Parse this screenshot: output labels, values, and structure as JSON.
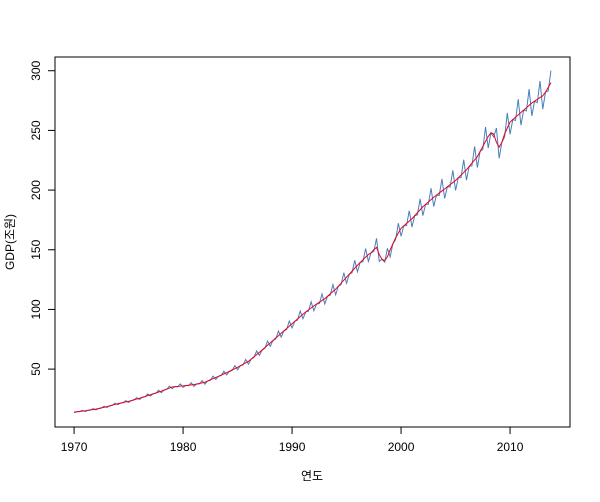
{
  "chart_data": {
    "type": "line",
    "xlabel": "연도",
    "ylabel": "GDP(조원)",
    "x": [
      1970,
      1970.25,
      1970.5,
      1970.75,
      1971,
      1971.25,
      1971.5,
      1971.75,
      1972,
      1972.25,
      1972.5,
      1972.75,
      1973,
      1973.25,
      1973.5,
      1973.75,
      1974,
      1974.25,
      1974.5,
      1974.75,
      1975,
      1975.25,
      1975.5,
      1975.75,
      1976,
      1976.25,
      1976.5,
      1976.75,
      1977,
      1977.25,
      1977.5,
      1977.75,
      1978,
      1978.25,
      1978.5,
      1978.75,
      1979,
      1979.25,
      1979.5,
      1979.75,
      1980,
      1980.25,
      1980.5,
      1980.75,
      1981,
      1981.25,
      1981.5,
      1981.75,
      1982,
      1982.25,
      1982.5,
      1982.75,
      1983,
      1983.25,
      1983.5,
      1983.75,
      1984,
      1984.25,
      1984.5,
      1984.75,
      1985,
      1985.25,
      1985.5,
      1985.75,
      1986,
      1986.25,
      1986.5,
      1986.75,
      1987,
      1987.25,
      1987.5,
      1987.75,
      1988,
      1988.25,
      1988.5,
      1988.75,
      1989,
      1989.25,
      1989.5,
      1989.75,
      1990,
      1990.25,
      1990.5,
      1990.75,
      1991,
      1991.25,
      1991.5,
      1991.75,
      1992,
      1992.25,
      1992.5,
      1992.75,
      1993,
      1993.25,
      1993.5,
      1993.75,
      1994,
      1994.25,
      1994.5,
      1994.75,
      1995,
      1995.25,
      1995.5,
      1995.75,
      1996,
      1996.25,
      1996.5,
      1996.75,
      1997,
      1997.25,
      1997.5,
      1997.75,
      1998,
      1998.25,
      1998.5,
      1998.75,
      1999,
      1999.25,
      1999.5,
      1999.75,
      2000,
      2000.25,
      2000.5,
      2000.75,
      2001,
      2001.25,
      2001.5,
      2001.75,
      2002,
      2002.25,
      2002.5,
      2002.75,
      2003,
      2003.25,
      2003.5,
      2003.75,
      2004,
      2004.25,
      2004.5,
      2004.75,
      2005,
      2005.25,
      2005.5,
      2005.75,
      2006,
      2006.25,
      2006.5,
      2006.75,
      2007,
      2007.25,
      2007.5,
      2007.75,
      2008,
      2008.25,
      2008.5,
      2008.75,
      2009,
      2009.25,
      2009.5,
      2009.75,
      2010,
      2010.25,
      2010.5,
      2010.75,
      2011,
      2011.25,
      2011.5,
      2011.75,
      2012,
      2012.25,
      2012.5,
      2012.75,
      2013,
      2013.25,
      2013.5,
      2013.75
    ],
    "series": [
      {
        "color": "#4a7ebb",
        "values": [
          13.4,
          14.3,
          14.4,
          15.5,
          14.4,
          15.4,
          15.6,
          16.9,
          15.8,
          17,
          17.3,
          18.9,
          17.8,
          19.1,
          19.6,
          21.4,
          20.2,
          21.5,
          21.8,
          23.6,
          22.1,
          23.6,
          24.1,
          26.1,
          24.5,
          26.3,
          26.7,
          29.2,
          27.4,
          29.3,
          29.7,
          32.3,
          30.2,
          32.4,
          33,
          35.8,
          33.6,
          35.3,
          35.1,
          37.6,
          34.6,
          36.3,
          36.1,
          38.6,
          35.5,
          37.5,
          37.6,
          40.4,
          37.4,
          40,
          40.6,
          44.1,
          41.3,
          44,
          44.6,
          48.3,
          45.1,
          48.1,
          48.8,
          52.9,
          49.4,
          52.8,
          53.5,
          58.1,
          54.2,
          58.4,
          59.7,
          65.2,
          61.4,
          66,
          67.3,
          73.5,
          69.1,
          74,
          75.2,
          81.9,
          76.8,
          82,
          83.2,
          90.3,
          84.5,
          90,
          91.1,
          98.7,
          92.2,
          97.8,
          98.5,
          106.4,
          98.9,
          104.5,
          104.9,
          112.9,
          104.6,
          111,
          111.9,
          120.8,
          112.3,
          119.5,
          120.8,
          130.7,
          121.9,
          129.5,
          130.7,
          141.2,
          131.5,
          139.3,
          140.1,
          151,
          140.2,
          147.5,
          148.5,
          159.6,
          140.2,
          142,
          139.6,
          151.2,
          144,
          155,
          158.4,
          172.2,
          161.3,
          170,
          170.3,
          182.7,
          169,
          178.5,
          179.2,
          192.7,
          178.6,
          188,
          188.1,
          201.6,
          186.2,
          195.8,
          195.5,
          209.3,
          193,
          202.8,
          202.5,
          216.6,
          199.7,
          210.3,
          210.4,
          225.5,
          208.3,
          219.8,
          220.3,
          236.6,
          218.9,
          232.3,
          234.1,
          252.8,
          235.2,
          248,
          244.5,
          252,
          226.6,
          240,
          244.5,
          264.6,
          246.7,
          259,
          258.4,
          276.2,
          254.4,
          267,
          266.3,
          284.6,
          262.1,
          274.5,
          273.2,
          291.4,
          267.8,
          282,
          283.1,
          300
        ]
      },
      {
        "color": "#e8001c",
        "values": [
          14,
          14.25,
          14.5,
          14.75,
          15,
          15.4,
          15.8,
          16.1,
          16.5,
          17,
          17.5,
          18,
          18.5,
          19.1,
          19.8,
          20.4,
          21,
          21.5,
          22,
          22.5,
          23,
          23.6,
          24.3,
          24.9,
          25.5,
          26.3,
          27,
          27.8,
          28.5,
          29.3,
          30,
          30.8,
          31.5,
          32.4,
          33.3,
          34.1,
          35,
          35.3,
          35.5,
          35.8,
          36,
          36.3,
          36.5,
          36.8,
          37,
          37.5,
          38,
          38.5,
          39,
          40,
          41,
          42,
          43,
          44,
          45,
          46,
          47,
          48.1,
          49.3,
          50.4,
          51.5,
          52.8,
          54,
          55.3,
          56.5,
          58.4,
          60.3,
          62.1,
          64,
          66,
          68,
          70,
          72,
          74,
          76,
          78,
          80,
          82,
          84,
          86,
          88,
          90,
          92,
          94,
          96,
          97.8,
          99.5,
          101.3,
          103,
          104.5,
          106,
          107.5,
          109,
          111,
          113,
          115,
          117,
          119.5,
          122,
          124.5,
          127,
          129.5,
          132,
          134.5,
          137,
          139.3,
          141.5,
          143.8,
          146,
          147.5,
          150,
          152,
          146,
          142,
          141,
          144,
          150,
          155,
          160,
          164,
          168,
          170,
          172,
          174,
          176,
          178.5,
          181,
          183.5,
          186,
          188,
          190,
          192,
          194,
          195.8,
          197.5,
          199.3,
          201,
          202.8,
          204.5,
          206.3,
          208,
          210.3,
          212.5,
          214.8,
          217,
          219.8,
          222.5,
          225.3,
          228,
          232.3,
          236.5,
          240.8,
          245,
          248,
          247,
          240,
          236,
          240,
          247,
          252,
          257,
          259,
          261,
          263,
          265,
          267,
          269,
          271,
          273,
          274.5,
          276,
          277.5,
          279,
          282,
          286,
          290
        ]
      }
    ],
    "xlim": [
      1968.25,
      2015.5
    ],
    "ylim": [
      1.5,
      311.5
    ],
    "xticks": [
      1970,
      1980,
      1990,
      2000,
      2010
    ],
    "yticks": [
      50,
      100,
      150,
      200,
      250,
      300
    ]
  }
}
